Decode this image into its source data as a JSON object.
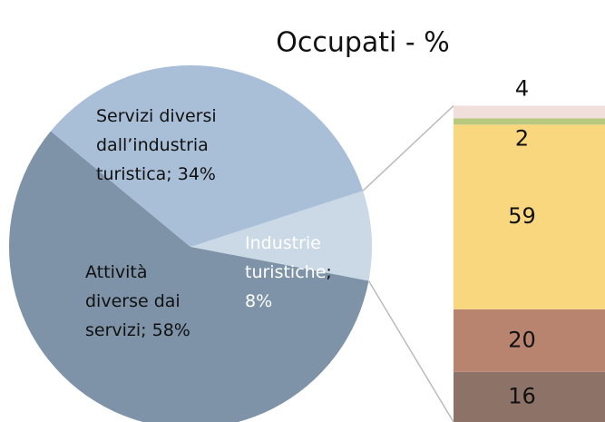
{
  "chart_data": {
    "type": "pie-of-bar",
    "title": "Occupati - %",
    "pie": {
      "values": [
        34,
        58,
        8
      ],
      "value_labels": [
        "Servizi diversi dall’industria turistica; 34%",
        "Attività diverse dai servizi; 58%",
        "Industrie turistiche; 8%"
      ],
      "colors": [
        "#a9bfd7",
        "#7e93a8",
        "#cbd8e6"
      ]
    },
    "bar": {
      "values": [
        16,
        20,
        59,
        2,
        4
      ],
      "colors": [
        "#8d7367",
        "#b9846f",
        "#f8d77f",
        "#b8c87c",
        "#f1dfdb"
      ]
    }
  }
}
